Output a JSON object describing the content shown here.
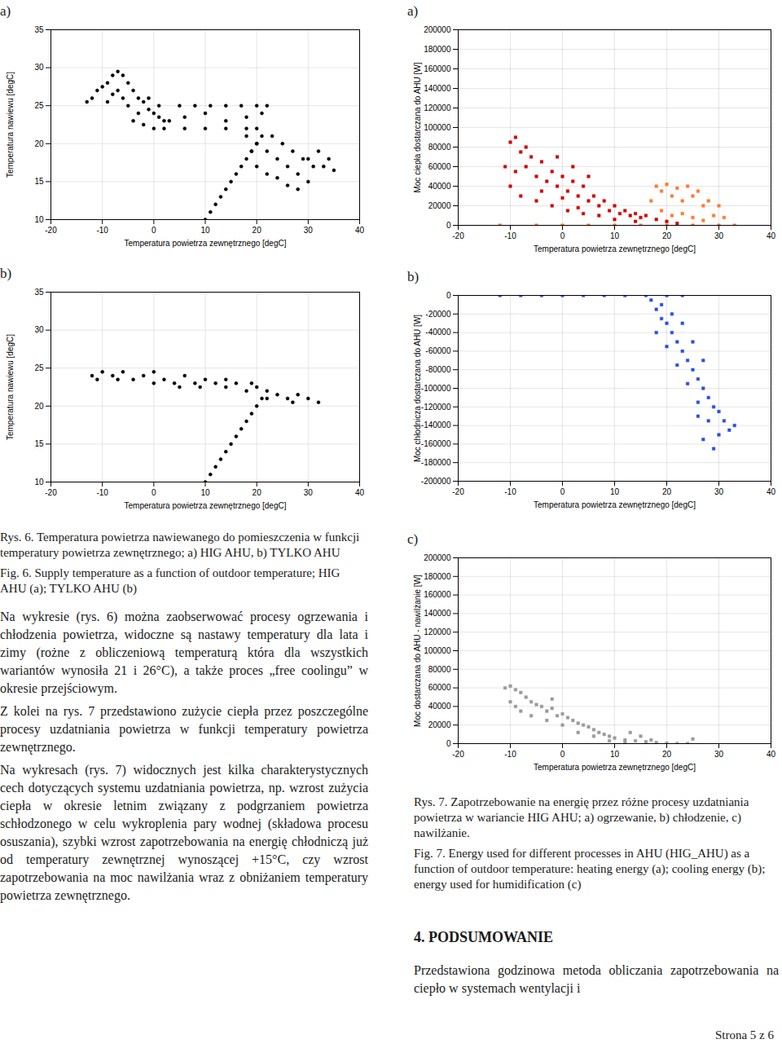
{
  "chart_data": [
    {
      "type": "scatter",
      "title": "a)",
      "x_label": "Temperatura powietrza zewnętrznego [degC]",
      "y_label": "Temperatura nawiewu [degC]",
      "xlim": [
        -20,
        40
      ],
      "xticks": [
        -20,
        -10,
        0,
        10,
        20,
        30,
        40
      ],
      "ylim": [
        10,
        35
      ],
      "yticks": [
        10,
        15,
        20,
        25,
        30,
        35
      ],
      "grid": true,
      "series": [
        {
          "color": "#000000",
          "marker": "circle",
          "x": [
            -13,
            -12,
            -11,
            -10,
            -9,
            -8,
            -7,
            -6,
            -5,
            -9,
            -8,
            -7,
            -6,
            -5,
            -4,
            -3,
            -2,
            -1,
            0,
            1,
            2,
            3,
            -4,
            -2,
            0,
            -1,
            1,
            -3,
            5,
            8,
            11,
            14,
            17,
            20,
            22,
            2,
            6,
            10,
            14,
            18,
            20,
            6,
            10,
            14,
            18,
            21,
            18,
            20,
            22,
            24,
            26,
            28,
            30,
            23,
            25,
            27,
            29,
            31,
            33,
            20,
            22,
            24,
            26,
            19,
            28,
            30,
            35,
            32,
            34,
            10,
            11,
            12,
            13,
            14,
            15,
            16,
            17,
            18,
            19,
            20,
            21
          ],
          "values": [
            25.5,
            26,
            27,
            27.5,
            28,
            29,
            29.5,
            29,
            28,
            25.5,
            26.5,
            27,
            26,
            25,
            27,
            26,
            25.5,
            24.5,
            24,
            23.5,
            23,
            23,
            23,
            22.5,
            22,
            26,
            25,
            24,
            25,
            25,
            25,
            25,
            25,
            25,
            25,
            22,
            22,
            22,
            22,
            22,
            22,
            23.5,
            24,
            23,
            23.5,
            24,
            21,
            20,
            19,
            18,
            17,
            16,
            15,
            21,
            20,
            19,
            18,
            17,
            17,
            17,
            16,
            15.5,
            14.5,
            19,
            14,
            18,
            16.5,
            19,
            18,
            10,
            11,
            12,
            13,
            14,
            15,
            16,
            17,
            18,
            19,
            20,
            21
          ]
        }
      ]
    },
    {
      "type": "scatter",
      "title": "b)",
      "x_label": "Temperatura powietrza zewnętrznego [degC]",
      "y_label": "Temperatura nawiewu [degC]",
      "xlim": [
        -20,
        40
      ],
      "xticks": [
        -20,
        -10,
        0,
        10,
        20,
        30,
        40
      ],
      "ylim": [
        10,
        35
      ],
      "yticks": [
        10,
        15,
        20,
        25,
        30,
        35
      ],
      "grid": true,
      "series": [
        {
          "color": "#000000",
          "marker": "circle",
          "x": [
            -12,
            -10,
            -8,
            -6,
            -4,
            -2,
            0,
            0,
            2,
            4,
            6,
            8,
            10,
            12,
            14,
            14,
            16,
            18,
            20,
            22,
            22,
            24,
            26,
            28,
            30,
            32,
            9,
            5,
            -7,
            -11,
            27,
            19,
            10,
            11,
            12,
            13,
            14,
            15,
            16,
            17,
            18,
            19,
            20,
            21
          ],
          "values": [
            24,
            24.5,
            24,
            24.5,
            23.5,
            24,
            23,
            24.5,
            23.5,
            23,
            24,
            23,
            23.5,
            23,
            22.5,
            23.5,
            23,
            22,
            22.5,
            22,
            21,
            21.5,
            21,
            21.5,
            21,
            20.5,
            22.5,
            22.5,
            23.5,
            23.5,
            20.5,
            23,
            10,
            11,
            12,
            13,
            14,
            15,
            16,
            17,
            18,
            19,
            20,
            21
          ]
        }
      ]
    },
    {
      "type": "scatter",
      "title": "a)",
      "x_label": "Temperatura powietrza zewnętrznego [degC]",
      "y_label": "Moc ciepła dostarczana do AHU [W]",
      "xlim": [
        -20,
        40
      ],
      "xticks": [
        -20,
        -10,
        0,
        10,
        20,
        30,
        40
      ],
      "ylim": [
        0,
        200000
      ],
      "yticks": [
        0,
        20000,
        40000,
        60000,
        80000,
        100000,
        120000,
        140000,
        160000,
        180000,
        200000
      ],
      "grid": true,
      "series": [
        {
          "color": "#d40000",
          "marker": "square",
          "x": [
            -10,
            -9,
            -8,
            -10,
            -9,
            -7,
            -6,
            -5,
            -4,
            -3,
            -2,
            -1,
            0,
            1,
            2,
            3,
            4,
            5,
            6,
            7,
            8,
            9,
            10,
            11,
            12,
            13,
            14,
            15,
            16,
            18,
            20,
            22,
            -8,
            -5,
            -2,
            1,
            4,
            -11,
            -4,
            0,
            3,
            7,
            10,
            14,
            -7,
            -1,
            2,
            5
          ],
          "values": [
            85000,
            90000,
            75000,
            40000,
            55000,
            60000,
            70000,
            50000,
            65000,
            45000,
            55000,
            40000,
            50000,
            35000,
            45000,
            30000,
            40000,
            25000,
            30000,
            20000,
            25000,
            15000,
            20000,
            12000,
            15000,
            10000,
            12000,
            8000,
            10000,
            6000,
            4000,
            2000,
            30000,
            25000,
            20000,
            15000,
            12000,
            60000,
            35000,
            28000,
            18000,
            10000,
            6000,
            4000,
            80000,
            70000,
            60000,
            50000
          ]
        },
        {
          "color": "#ff7a30",
          "marker": "square",
          "x": [
            17,
            18,
            19,
            20,
            21,
            22,
            23,
            24,
            25,
            26,
            27,
            28,
            19,
            21,
            23,
            25,
            27,
            29,
            30,
            31,
            -12,
            -5,
            0,
            5,
            10,
            15,
            20,
            25,
            30,
            33
          ],
          "values": [
            25000,
            40000,
            35000,
            42000,
            30000,
            38000,
            25000,
            40000,
            30000,
            35000,
            20000,
            25000,
            15000,
            10000,
            12000,
            8000,
            5000,
            10000,
            20000,
            8000,
            0,
            0,
            0,
            0,
            0,
            0,
            0,
            0,
            0,
            0
          ]
        }
      ]
    },
    {
      "type": "scatter",
      "title": "b)",
      "x_label": "Temperatura powietrza zewnętrznego [degC]",
      "y_label": "Moc chłodnicza dostarczana do AHU [W]",
      "xlim": [
        -20,
        40
      ],
      "xticks": [
        -20,
        -10,
        0,
        10,
        20,
        30,
        40
      ],
      "ylim": [
        -200000,
        0
      ],
      "yticks": [
        -200000,
        -180000,
        -160000,
        -140000,
        -120000,
        -100000,
        -80000,
        -60000,
        -40000,
        -20000,
        0
      ],
      "grid": true,
      "series": [
        {
          "color": "#2a4fe0",
          "marker": "square",
          "x": [
            -12,
            -8,
            -4,
            0,
            4,
            8,
            12,
            16,
            20,
            23,
            17,
            18,
            19,
            20,
            21,
            22,
            23,
            24,
            25,
            26,
            27,
            28,
            29,
            30,
            31,
            32,
            33,
            18,
            20,
            22,
            24,
            26,
            28,
            29,
            27,
            23,
            25,
            27,
            19,
            21,
            26,
            30
          ],
          "values": [
            0,
            0,
            0,
            0,
            0,
            0,
            0,
            0,
            0,
            0,
            -5000,
            -15000,
            -25000,
            -30000,
            -40000,
            -50000,
            -60000,
            -70000,
            -80000,
            -90000,
            -100000,
            -110000,
            -120000,
            -125000,
            -135000,
            -145000,
            -140000,
            -40000,
            -55000,
            -75000,
            -95000,
            -115000,
            -135000,
            -165000,
            -155000,
            -30000,
            -50000,
            -70000,
            -10000,
            -20000,
            -130000,
            -150000
          ]
        }
      ]
    },
    {
      "type": "scatter",
      "title": "c)",
      "x_label": "Temperatura powietrza zewnętrznego [degC]",
      "y_label": "Moc dostarczana do AHU - nawilżanie [W]",
      "xlim": [
        -20,
        40
      ],
      "xticks": [
        -20,
        -10,
        0,
        10,
        20,
        30,
        40
      ],
      "ylim": [
        0,
        200000
      ],
      "yticks": [
        0,
        20000,
        40000,
        60000,
        80000,
        100000,
        120000,
        140000,
        160000,
        180000,
        200000
      ],
      "grid": true,
      "series": [
        {
          "color": "#9a9a9a",
          "marker": "square",
          "x": [
            -11,
            -10,
            -9,
            -8,
            -10,
            -9,
            -7,
            -6,
            -5,
            -4,
            -3,
            -2,
            -1,
            0,
            1,
            2,
            3,
            4,
            5,
            6,
            7,
            8,
            9,
            10,
            12,
            14,
            16,
            18,
            20,
            22,
            24,
            -8,
            -6,
            -3,
            0,
            3,
            6,
            9,
            12,
            -2,
            13,
            15,
            17,
            25
          ],
          "values": [
            60000,
            62000,
            58000,
            55000,
            45000,
            40000,
            50000,
            45000,
            42000,
            40000,
            35000,
            38000,
            30000,
            32000,
            28000,
            25000,
            22000,
            20000,
            18000,
            15000,
            12000,
            10000,
            8000,
            6000,
            4000,
            3000,
            2000,
            1000,
            500,
            0,
            0,
            35000,
            30000,
            25000,
            20000,
            12000,
            8000,
            3000,
            1000,
            48000,
            12000,
            8000,
            4000,
            5000
          ]
        }
      ]
    }
  ],
  "text": {
    "left_column": {
      "captions": [
        "Rys. 6. Temperatura powietrza nawiewanego do pomieszczenia w funkcji temperatury powietrza zewnętrznego; a) HIG AHU, b) TYLKO AHU",
        "Fig. 6. Supply temperature as a function of outdoor temperature; HIG AHU (a); TYLKO AHU (b)"
      ],
      "paragraphs": [
        "Na wykresie (rys. 6) można zaobserwować procesy ogrzewania i chłodzenia powietrza, widoczne są nastawy temperatury dla lata i zimy (rożne z obliczeniową temperaturą która dla wszystkich wariantów wynosiła 21 i 26°C), a także proces „free coolingu” w okresie przejściowym.",
        "Z kolei na rys. 7 przedstawiono zużycie ciepła przez poszczególne procesy uzdatniania powietrza w funkcji temperatury powietrza zewnętrznego.",
        "Na wykresach (rys. 7) widocznych jest kilka charakterystycznych cech dotyczących systemu uzdatniania powietrza, np. wzrost zużycia ciepła w okresie letnim związany z podgrzaniem powietrza schłodzonego w celu wykroplenia pary wodnej (składowa procesu osuszania), szybki wzrost zapotrzebowania na energię chłodniczą już od temperatury zewnętrznej wynoszącej +15°C, czy wzrost zapotrzebowania na moc nawilżania wraz z obniżaniem temperatury powietrza zewnętrznego."
      ]
    },
    "right_column": {
      "captions": [
        "Rys. 7. Zapotrzebowanie na energię przez różne procesy uzdatniania powietrza w wariancie HIG AHU; a) ogrzewanie, b) chłodzenie, c) nawilżanie.",
        "Fig. 7. Energy used for different processes in AHU (HIG_AHU) as a function of outdoor temperature: heating energy (a); cooling energy (b); energy used for humidification (c)"
      ],
      "heading": "4. PODSUMOWANIE",
      "paragraphs": [
        "Przedstawiona godzinowa metoda obliczania zapotrzebowania na ciepło w systemach wentylacji i"
      ]
    },
    "footer": "Strona 5 z 6"
  }
}
